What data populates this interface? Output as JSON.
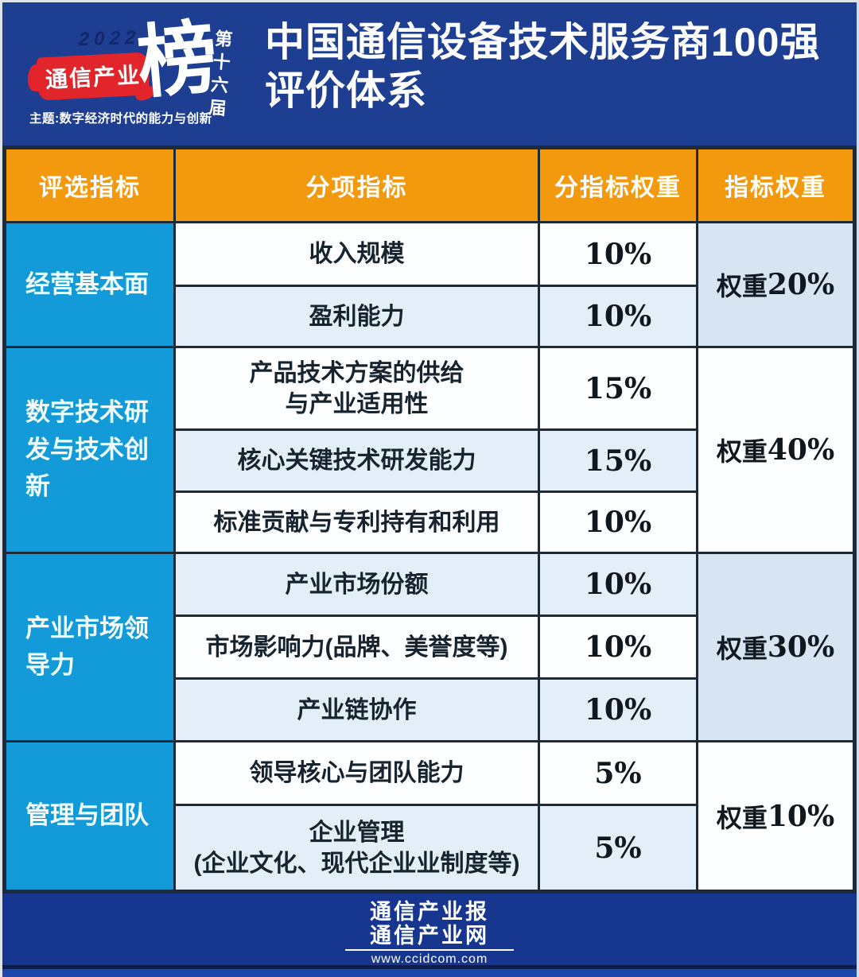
{
  "header": {
    "badge": {
      "year": "2022",
      "brand": "通信产业",
      "big_char": "榜",
      "edition": "第十六届",
      "theme": "主题:数字经济时代的能力与创新"
    },
    "title_line1": "中国通信设备技术服务商100强",
    "title_line2": "评价体系"
  },
  "table": {
    "columns": [
      "评选指标",
      "分项指标",
      "分指标权重",
      "指标权重"
    ],
    "groups": [
      {
        "name": "经营基本面",
        "weight_prefix": "权重",
        "weight_value": "20%",
        "rows": [
          {
            "line1": "收入规模",
            "line2": "",
            "pct": "10%"
          },
          {
            "line1": "盈利能力",
            "line2": "",
            "pct": "10%"
          }
        ]
      },
      {
        "name": "数字技术研发与技术创新",
        "weight_prefix": "权重",
        "weight_value": "40%",
        "rows": [
          {
            "line1": "产品技术方案的供给",
            "line2": "与产业适用性",
            "pct": "15%"
          },
          {
            "line1": "核心关键技术研发能力",
            "line2": "",
            "pct": "15%"
          },
          {
            "line1": "标准贡献与专利持有和利用",
            "line2": "",
            "pct": "10%"
          }
        ]
      },
      {
        "name": "产业市场领导力",
        "weight_prefix": "权重",
        "weight_value": "30%",
        "rows": [
          {
            "line1": "产业市场份额",
            "line2": "",
            "pct": "10%"
          },
          {
            "line1": "市场影响力(品牌、美誉度等)",
            "line2": "",
            "pct": "10%"
          },
          {
            "line1": "产业链协作",
            "line2": "",
            "pct": "10%"
          }
        ]
      },
      {
        "name": "管理与团队",
        "weight_prefix": "权重",
        "weight_value": "10%",
        "rows": [
          {
            "line1": "领导核心与团队能力",
            "line2": "",
            "pct": "5%"
          },
          {
            "line1": "企业管理",
            "line2": "(企业文化、现代企业业制度等)",
            "pct": "5%"
          }
        ]
      }
    ]
  },
  "footer": {
    "line1": "通信产业报",
    "line2": "通信产业网",
    "url": "www.ccidcom.com"
  },
  "colors": {
    "bg": "#1e3e92",
    "orange": "#f2990e",
    "groupblue": "#129bd8",
    "rowalt": "#e3eef8",
    "rowwhite": "#fdfeff",
    "weightalt": "#d7e5f3",
    "border": "#1d2b38",
    "brushred": "#e2242b",
    "footerblue": "#16368f"
  },
  "chart_data": {
    "type": "table",
    "title": "中国通信设备技术服务商100强评价体系",
    "columns": [
      "评选指标",
      "分项指标",
      "分指标权重",
      "指标权重"
    ],
    "rows": [
      [
        "经营基本面",
        "收入规模",
        "10%",
        "权重20%"
      ],
      [
        "经营基本面",
        "盈利能力",
        "10%",
        "权重20%"
      ],
      [
        "数字技术研发与技术创新",
        "产品技术方案的供给与产业适用性",
        "15%",
        "权重40%"
      ],
      [
        "数字技术研发与技术创新",
        "核心关键技术研发能力",
        "15%",
        "权重40%"
      ],
      [
        "数字技术研发与技术创新",
        "标准贡献与专利持有和利用",
        "10%",
        "权重40%"
      ],
      [
        "产业市场领导力",
        "产业市场份额",
        "10%",
        "权重30%"
      ],
      [
        "产业市场领导力",
        "市场影响力(品牌、美誉度等)",
        "10%",
        "权重30%"
      ],
      [
        "产业市场领导力",
        "产业链协作",
        "10%",
        "权重30%"
      ],
      [
        "管理与团队",
        "领导核心与团队能力",
        "5%",
        "权重10%"
      ],
      [
        "管理与团队",
        "企业管理(企业文化、现代企业业制度等)",
        "5%",
        "权重10%"
      ]
    ]
  }
}
